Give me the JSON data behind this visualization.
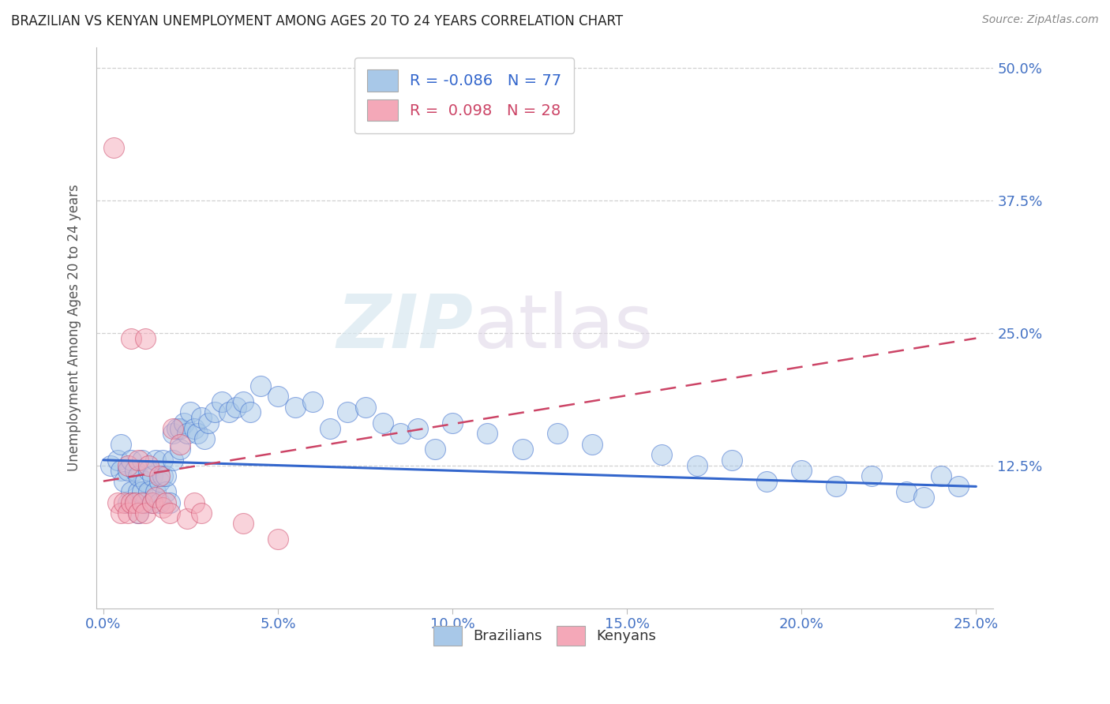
{
  "title": "BRAZILIAN VS KENYAN UNEMPLOYMENT AMONG AGES 20 TO 24 YEARS CORRELATION CHART",
  "source": "Source: ZipAtlas.com",
  "ylabel": "Unemployment Among Ages 20 to 24 years",
  "xlim": [
    -0.002,
    0.255
  ],
  "ylim": [
    -0.01,
    0.52
  ],
  "xticks": [
    0.0,
    0.05,
    0.1,
    0.15,
    0.2,
    0.25
  ],
  "yticks": [
    0.0,
    0.125,
    0.25,
    0.375,
    0.5
  ],
  "ytick_labels_right": [
    "",
    "12.5%",
    "25.0%",
    "37.5%",
    "50.0%"
  ],
  "xtick_labels": [
    "0.0%",
    "5.0%",
    "10.0%",
    "15.0%",
    "20.0%",
    "25.0%"
  ],
  "legend_r_brazil": "-0.086",
  "legend_n_brazil": "77",
  "legend_r_kenya": "0.098",
  "legend_n_kenya": "28",
  "brazil_color": "#a8c8e8",
  "kenya_color": "#f4a8b8",
  "brazil_line_color": "#3366cc",
  "kenya_line_color": "#cc4466",
  "brazil_scatter_x": [
    0.002,
    0.004,
    0.005,
    0.005,
    0.006,
    0.007,
    0.007,
    0.008,
    0.008,
    0.009,
    0.009,
    0.01,
    0.01,
    0.01,
    0.011,
    0.011,
    0.012,
    0.012,
    0.013,
    0.013,
    0.014,
    0.014,
    0.015,
    0.015,
    0.016,
    0.016,
    0.017,
    0.017,
    0.018,
    0.018,
    0.019,
    0.02,
    0.02,
    0.021,
    0.022,
    0.022,
    0.023,
    0.024,
    0.025,
    0.026,
    0.027,
    0.028,
    0.029,
    0.03,
    0.032,
    0.034,
    0.036,
    0.038,
    0.04,
    0.042,
    0.045,
    0.05,
    0.055,
    0.06,
    0.065,
    0.07,
    0.075,
    0.08,
    0.085,
    0.09,
    0.095,
    0.1,
    0.11,
    0.12,
    0.13,
    0.14,
    0.16,
    0.17,
    0.18,
    0.19,
    0.2,
    0.21,
    0.22,
    0.23,
    0.235,
    0.24,
    0.245
  ],
  "brazil_scatter_y": [
    0.125,
    0.13,
    0.12,
    0.145,
    0.11,
    0.12,
    0.09,
    0.1,
    0.13,
    0.09,
    0.12,
    0.1,
    0.08,
    0.115,
    0.1,
    0.13,
    0.09,
    0.11,
    0.1,
    0.12,
    0.09,
    0.115,
    0.1,
    0.13,
    0.09,
    0.11,
    0.115,
    0.13,
    0.1,
    0.115,
    0.09,
    0.155,
    0.13,
    0.16,
    0.14,
    0.16,
    0.165,
    0.155,
    0.175,
    0.16,
    0.155,
    0.17,
    0.15,
    0.165,
    0.175,
    0.185,
    0.175,
    0.18,
    0.185,
    0.175,
    0.2,
    0.19,
    0.18,
    0.185,
    0.16,
    0.175,
    0.18,
    0.165,
    0.155,
    0.16,
    0.14,
    0.165,
    0.155,
    0.14,
    0.155,
    0.145,
    0.135,
    0.125,
    0.13,
    0.11,
    0.12,
    0.105,
    0.115,
    0.1,
    0.095,
    0.115,
    0.105
  ],
  "kenya_scatter_x": [
    0.003,
    0.004,
    0.005,
    0.006,
    0.007,
    0.007,
    0.008,
    0.008,
    0.009,
    0.01,
    0.01,
    0.011,
    0.012,
    0.012,
    0.013,
    0.014,
    0.015,
    0.016,
    0.017,
    0.018,
    0.019,
    0.02,
    0.022,
    0.024,
    0.026,
    0.028,
    0.04,
    0.05
  ],
  "kenya_scatter_y": [
    0.425,
    0.09,
    0.08,
    0.09,
    0.08,
    0.125,
    0.09,
    0.245,
    0.09,
    0.13,
    0.08,
    0.09,
    0.08,
    0.245,
    0.125,
    0.09,
    0.095,
    0.115,
    0.085,
    0.09,
    0.08,
    0.16,
    0.145,
    0.075,
    0.09,
    0.08,
    0.07,
    0.055
  ],
  "brazil_trend_x": [
    0.0,
    0.25
  ],
  "brazil_trend_y": [
    0.13,
    0.105
  ],
  "kenya_trend_x": [
    0.0,
    0.25
  ],
  "kenya_trend_y": [
    0.11,
    0.245
  ],
  "background_color": "#ffffff",
  "grid_color": "#cccccc",
  "title_color": "#222222",
  "axis_label_color": "#555555",
  "tick_label_color": "#4472c4",
  "watermark_text": "ZIP",
  "watermark_text2": "atlas"
}
